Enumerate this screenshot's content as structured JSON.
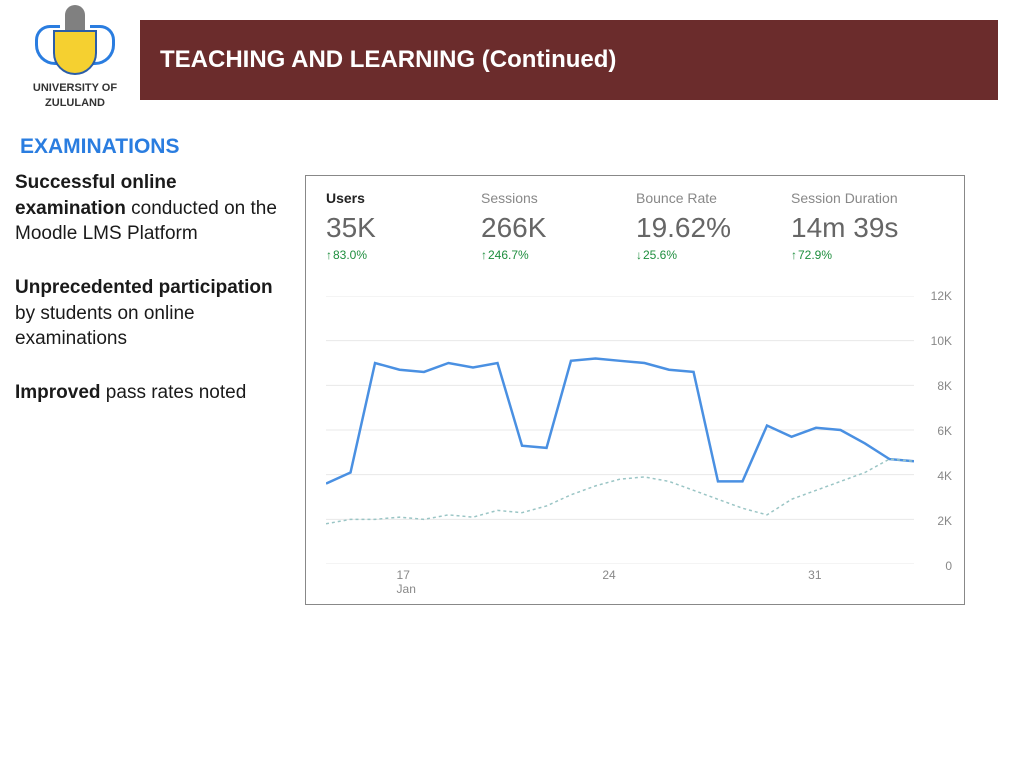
{
  "logo": {
    "line1": "UNIVERSITY OF",
    "line2": "ZULULAND"
  },
  "header": {
    "title": "TEACHING AND LEARNING (Continued)"
  },
  "section": {
    "title": "EXAMINATIONS"
  },
  "bullets": [
    {
      "bold": "Successful online examination",
      "rest": " conducted on the Moodle LMS Platform"
    },
    {
      "bold": "Unprecedented participation",
      "rest": " by students on online examinations"
    },
    {
      "bold": "Improved",
      "rest": " pass rates noted"
    }
  ],
  "metrics": [
    {
      "label": "Users",
      "value": "35K",
      "change": "83.0%",
      "direction": "up",
      "active": true
    },
    {
      "label": "Sessions",
      "value": "266K",
      "change": "246.7%",
      "direction": "up",
      "active": false
    },
    {
      "label": "Bounce Rate",
      "value": "19.62%",
      "change": "25.6%",
      "direction": "down",
      "active": false
    },
    {
      "label": "Session Duration",
      "value": "14m 39s",
      "change": "72.9%",
      "direction": "up",
      "active": false
    }
  ],
  "chart": {
    "type": "line",
    "background_color": "#ffffff",
    "grid_color": "#e8e8e8",
    "ylim": [
      0,
      12000
    ],
    "ytick_step": 2000,
    "ytick_labels": [
      "0",
      "2K",
      "4K",
      "6K",
      "8K",
      "10K",
      "12K"
    ],
    "x_ticks": [
      {
        "pos": 0.12,
        "label": "17",
        "sub": "Jan"
      },
      {
        "pos": 0.47,
        "label": "24",
        "sub": ""
      },
      {
        "pos": 0.82,
        "label": "31",
        "sub": ""
      }
    ],
    "series": [
      {
        "name": "solid",
        "color": "#4a90e2",
        "line_width": 2.5,
        "dash": false,
        "values": [
          3600,
          4100,
          9000,
          8700,
          8600,
          9000,
          8800,
          9000,
          5300,
          5200,
          9100,
          9200,
          9100,
          9000,
          8700,
          8600,
          3700,
          3700,
          6200,
          5700,
          6100,
          6000,
          5400,
          4700,
          4600
        ]
      },
      {
        "name": "dashed",
        "color": "#9ac5c5",
        "line_width": 1.5,
        "dash": true,
        "values": [
          1800,
          2000,
          2000,
          2100,
          2000,
          2200,
          2100,
          2400,
          2300,
          2600,
          3100,
          3500,
          3800,
          3900,
          3700,
          3300,
          2900,
          2500,
          2200,
          2900,
          3300,
          3700,
          4100,
          4700,
          4600
        ]
      }
    ],
    "label_fontsize": 12,
    "label_color": "#888888"
  },
  "colors": {
    "header_bg": "#6b2c2c",
    "section_title": "#2a7de0",
    "change_green": "#1e8e3e"
  }
}
